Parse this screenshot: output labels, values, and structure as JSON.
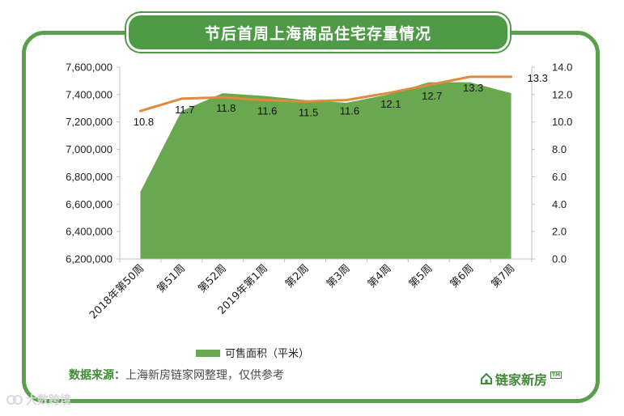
{
  "page": {
    "title": "节后首周上海商品住宅存量情况",
    "source_label": "数据来源：",
    "source_text": "上海新房链家网整理，仅供参考",
    "brand": "链家新房",
    "brand_tm": "TM",
    "watermark": "大数跨境"
  },
  "colors": {
    "frame": "#5aa04c",
    "title_bg": "#4f9a46",
    "area": "#6aa84f",
    "line": "#e08a3c",
    "axis": "#bfbfbf"
  },
  "chart_data": {
    "type": "area",
    "title": "节后首周上海商品住宅存量情况",
    "categories": [
      "2018年第50周",
      "第51周",
      "第52周",
      "2019年第1周",
      "第2周",
      "第3周",
      "第4周",
      "第5周",
      "第6周",
      "第7周"
    ],
    "series": [
      {
        "name": "可售面积（平米）",
        "type": "area",
        "axis": "left",
        "values": [
          6690000,
          7280000,
          7410000,
          7390000,
          7360000,
          7340000,
          7400000,
          7490000,
          7490000,
          7410000
        ]
      },
      {
        "name": "",
        "type": "line",
        "axis": "right",
        "values": [
          10.8,
          11.7,
          11.8,
          11.6,
          11.5,
          11.6,
          12.1,
          12.7,
          13.3,
          13.3
        ]
      }
    ],
    "y_left": {
      "min": 6200000,
      "max": 7600000,
      "ticks": [
        "6,200,000",
        "6,400,000",
        "6,600,000",
        "6,800,000",
        "7,000,000",
        "7,200,000",
        "7,400,000",
        "7,600,000"
      ]
    },
    "y_right": {
      "min": 0,
      "max": 14,
      "ticks": [
        "0.0",
        "2.0",
        "4.0",
        "6.0",
        "8.0",
        "10.0",
        "12.0",
        "14.0"
      ]
    },
    "data_labels": [
      "10.8",
      "11.7",
      "11.8",
      "11.6",
      "11.5",
      "11.6",
      "12.1",
      "12.7",
      "13.3",
      "13.3"
    ],
    "legend": {
      "position": "bottom",
      "entries": [
        "可售面积（平米）"
      ]
    },
    "grid": false
  }
}
